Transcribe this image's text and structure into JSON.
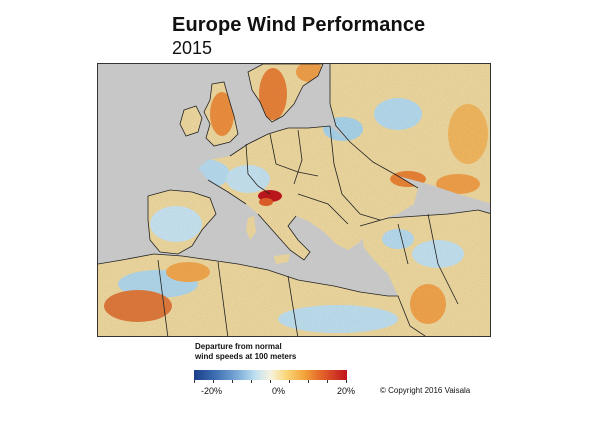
{
  "header": {
    "title": "Europe Wind Performance",
    "subtitle": "2015"
  },
  "legend": {
    "title_line1": "Departure from normal",
    "title_line2": "wind speeds at 100 meters",
    "tick_min": "-20%",
    "tick_mid": "0%",
    "tick_max": "20%",
    "colors": [
      "#1b3f8a",
      "#3d6fb3",
      "#79a9d6",
      "#bfe0f0",
      "#f6f3e0",
      "#fad77a",
      "#f3a33a",
      "#e2602a",
      "#c0141e"
    ]
  },
  "footer": {
    "copyright": "© Copyright 2016 Vaisala"
  },
  "colors": {
    "sea": "#c7c7c7",
    "land_neutral": "#efd9a0",
    "positive": "#e8823a",
    "strong_positive": "#c0141e",
    "negative": "#a9d4ea",
    "border": "#222222"
  }
}
